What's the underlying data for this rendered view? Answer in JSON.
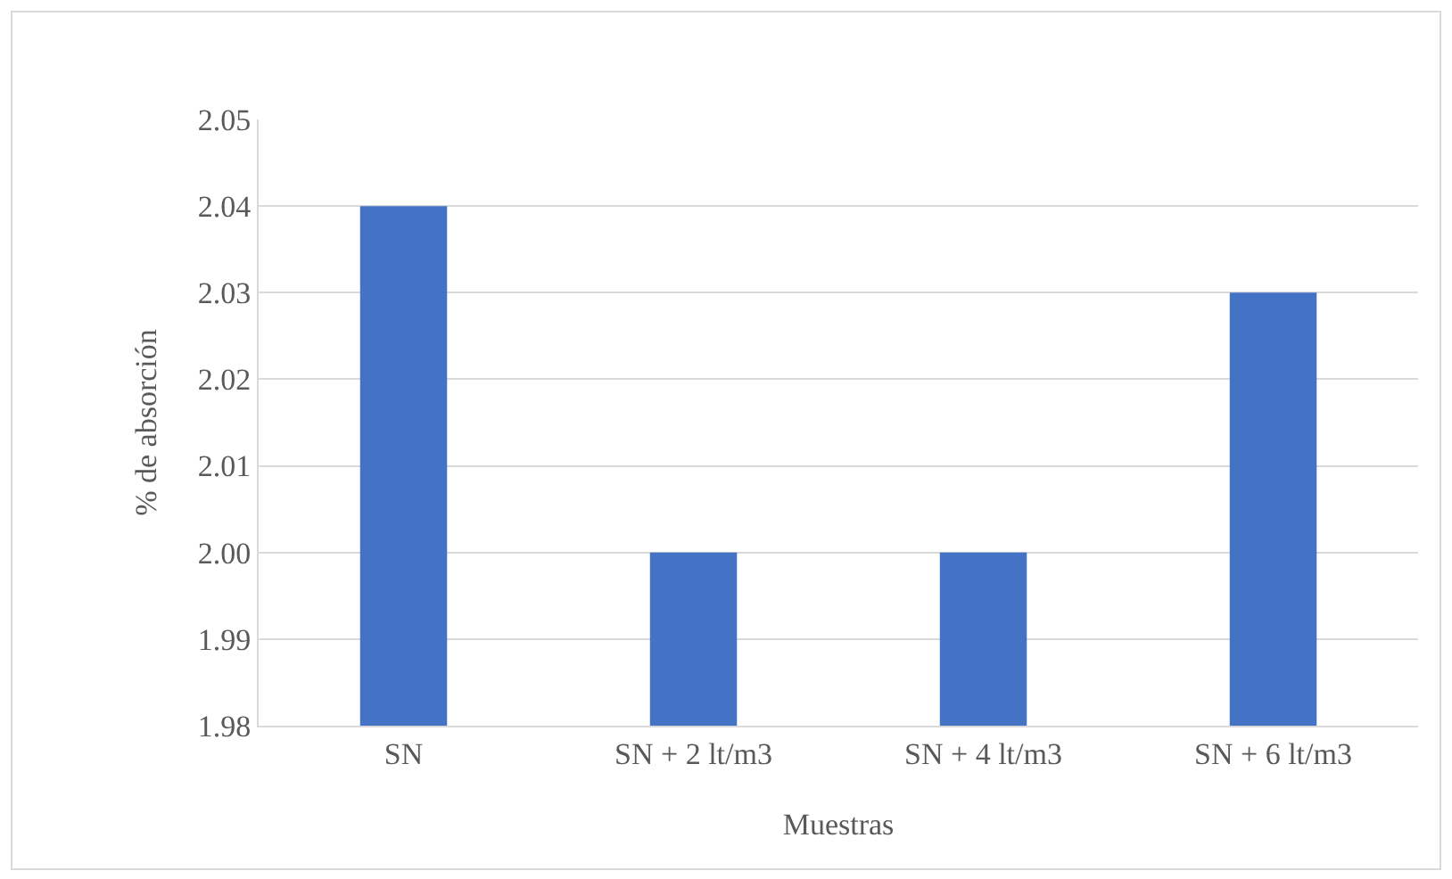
{
  "chart_data": {
    "type": "bar",
    "xlabel": "Muestras",
    "ylabel": "% de absorción",
    "categories": [
      "SN",
      "SN + 2 lt/m3",
      "SN + 4 lt/m3",
      "SN + 6 lt/m3"
    ],
    "values": [
      2.04,
      2.0,
      2.0,
      2.03
    ],
    "color": "#4472c4",
    "ylim": [
      1.98,
      2.05
    ],
    "yticks": [
      {
        "value": 1.98,
        "label": "1.98"
      },
      {
        "value": 1.99,
        "label": "1.99"
      },
      {
        "value": 2.0,
        "label": "2.00"
      },
      {
        "value": 2.01,
        "label": "2.01"
      },
      {
        "value": 2.02,
        "label": "2.02"
      },
      {
        "value": 2.03,
        "label": "2.03"
      },
      {
        "value": 2.04,
        "label": "2.04"
      },
      {
        "value": 2.05,
        "label": "2.05"
      }
    ],
    "grid": "y"
  }
}
